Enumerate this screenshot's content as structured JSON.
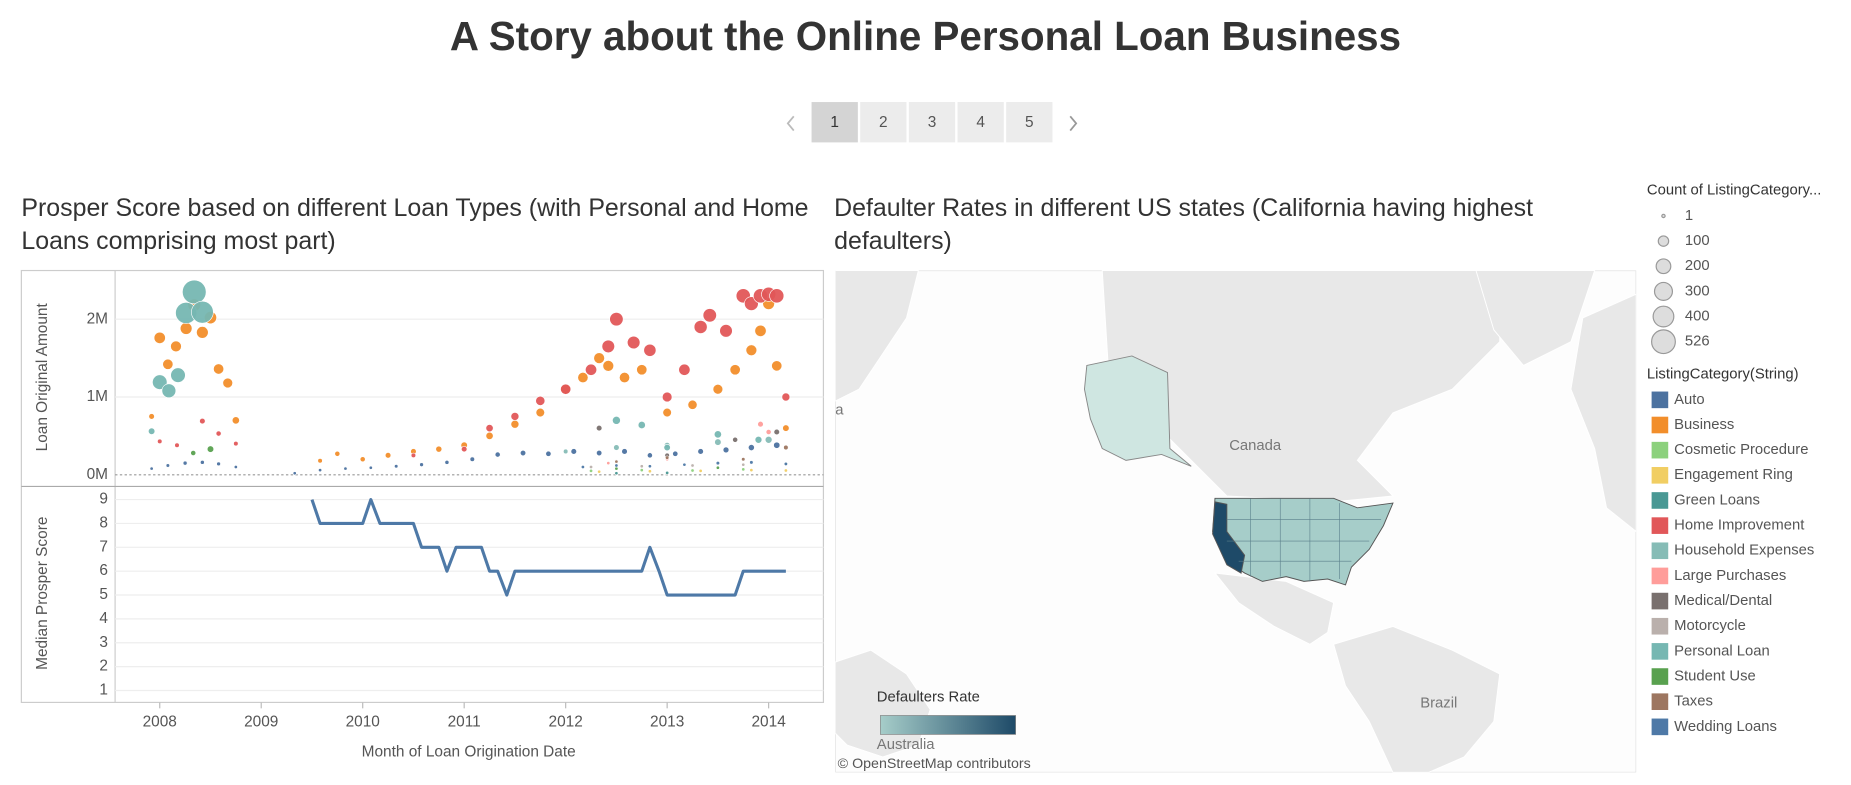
{
  "title": "A Story about the Online Personal Loan Business",
  "story_pages": [
    "1",
    "2",
    "3",
    "4",
    "5"
  ],
  "chart_data": [
    {
      "type": "bubble",
      "title": "Prosper Score based on different Loan Types (with Personal and Home Loans comprising most part)",
      "y_label": "Loan Original Amount",
      "xlim": [
        2007.56,
        2014.54
      ],
      "ylim": [
        -150000,
        2610000
      ],
      "yticks": [
        {
          "value": 0,
          "label": "0M"
        },
        {
          "value": 1000000,
          "label": "1M"
        },
        {
          "value": 2000000,
          "label": "2M"
        }
      ],
      "size_legend_title": "Count of ListingCategory...",
      "size_legend": [
        1,
        100,
        200,
        300,
        400,
        526
      ],
      "color_legend_title": "ListingCategory(String)",
      "series": [
        {
          "name": "Auto",
          "color": "#4c72a0",
          "x": [
            2007.92,
            2008.08,
            2008.25,
            2008.42,
            2008.58,
            2008.75,
            2009.33,
            2009.58,
            2009.83,
            2010.08,
            2010.33,
            2010.58,
            2010.83,
            2011.08,
            2011.33,
            2011.58,
            2011.83,
            2012.08,
            2012.33,
            2012.58,
            2012.83,
            2013.08,
            2013.33,
            2013.58,
            2013.83,
            2014.08
          ],
          "values": [
            80000,
            120000,
            150000,
            160000,
            140000,
            100000,
            20000,
            60000,
            80000,
            90000,
            110000,
            130000,
            160000,
            200000,
            260000,
            280000,
            270000,
            300000,
            280000,
            300000,
            250000,
            270000,
            300000,
            320000,
            350000,
            380000
          ],
          "sizes": [
            10,
            12,
            15,
            15,
            14,
            10,
            2,
            8,
            10,
            10,
            12,
            14,
            16,
            20,
            25,
            28,
            27,
            30,
            28,
            30,
            25,
            27,
            30,
            32,
            35,
            38
          ]
        },
        {
          "name": "Business",
          "color": "#f28e2b",
          "x": [
            2007.92,
            2008.0,
            2008.08,
            2008.16,
            2008.26,
            2008.34,
            2008.42,
            2008.5,
            2008.58,
            2008.67,
            2008.75,
            2009.58,
            2009.75,
            2010.0,
            2010.25,
            2010.5,
            2010.75,
            2011.0,
            2011.25,
            2011.5,
            2011.75,
            2012.0,
            2012.17,
            2012.33,
            2012.42,
            2012.58,
            2012.75,
            2013.0,
            2013.25,
            2013.5,
            2013.67,
            2013.83,
            2013.92,
            2014.0,
            2014.08,
            2014.17
          ],
          "values": [
            750000,
            1760000,
            1420000,
            1650000,
            1880000,
            2180000,
            1830000,
            2020000,
            1360000,
            1180000,
            700000,
            180000,
            270000,
            200000,
            250000,
            300000,
            330000,
            380000,
            500000,
            650000,
            800000,
            1100000,
            1250000,
            1500000,
            1400000,
            1250000,
            1350000,
            800000,
            900000,
            1100000,
            1350000,
            1600000,
            1850000,
            2200000,
            1400000,
            600000
          ],
          "sizes": [
            30,
            120,
            100,
            110,
            130,
            150,
            130,
            140,
            100,
            90,
            50,
            20,
            25,
            25,
            30,
            30,
            35,
            40,
            50,
            60,
            70,
            90,
            100,
            110,
            110,
            100,
            100,
            70,
            80,
            90,
            100,
            110,
            120,
            130,
            100,
            40
          ]
        },
        {
          "name": "Cosmetic Procedure",
          "color": "#8cd17d",
          "x": [
            2012.25,
            2012.75,
            2013.25,
            2013.75
          ],
          "values": [
            50000,
            60000,
            55000,
            70000
          ],
          "sizes": [
            3,
            4,
            4,
            5
          ]
        },
        {
          "name": "Engagement Ring",
          "color": "#f1ce63",
          "x": [
            2012.33,
            2012.83,
            2013.33,
            2013.83,
            2014.17
          ],
          "values": [
            40000,
            45000,
            50000,
            60000,
            55000
          ],
          "sizes": [
            4,
            4,
            5,
            6,
            5
          ]
        },
        {
          "name": "Green Loans",
          "color": "#499894",
          "x": [
            2012.5,
            2013.0
          ],
          "values": [
            20000,
            25000
          ],
          "sizes": [
            2,
            2
          ]
        },
        {
          "name": "Home Improvement",
          "color": "#e15759",
          "x": [
            2008.0,
            2008.17,
            2008.42,
            2008.58,
            2008.75,
            2010.5,
            2011.0,
            2011.25,
            2011.5,
            2011.75,
            2012.0,
            2012.25,
            2012.42,
            2012.5,
            2012.67,
            2012.83,
            2013.0,
            2013.17,
            2013.33,
            2013.42,
            2013.58,
            2013.75,
            2013.83,
            2013.92,
            2014.0,
            2014.08,
            2014.17
          ],
          "values": [
            430000,
            380000,
            690000,
            530000,
            400000,
            250000,
            330000,
            600000,
            750000,
            950000,
            1100000,
            1350000,
            1650000,
            2000000,
            1700000,
            1600000,
            1000000,
            1350000,
            1900000,
            2050000,
            1850000,
            2300000,
            2200000,
            2300000,
            2320000,
            2300000,
            1000000
          ],
          "sizes": [
            20,
            20,
            30,
            25,
            20,
            20,
            30,
            50,
            60,
            80,
            100,
            120,
            150,
            170,
            150,
            140,
            90,
            120,
            160,
            170,
            150,
            190,
            180,
            190,
            190,
            190,
            60
          ]
        },
        {
          "name": "Household Expenses",
          "color": "#86bcb6",
          "x": [
            2012.0,
            2012.5,
            2013.0,
            2013.5,
            2014.0
          ],
          "values": [
            300000,
            350000,
            380000,
            420000,
            450000
          ],
          "sizes": [
            20,
            30,
            30,
            40,
            45
          ]
        },
        {
          "name": "Large Purchases",
          "color": "#ff9d9a",
          "x": [
            2012.42,
            2013.0,
            2013.92,
            2014.0
          ],
          "values": [
            150000,
            200000,
            650000,
            550000
          ],
          "sizes": [
            8,
            10,
            30,
            25
          ]
        },
        {
          "name": "Medical/Dental",
          "color": "#79706e",
          "x": [
            2012.33,
            2013.0,
            2013.67,
            2014.08
          ],
          "values": [
            600000,
            250000,
            450000,
            550000
          ],
          "sizes": [
            30,
            20,
            25,
            30
          ]
        },
        {
          "name": "Motorcycle",
          "color": "#bab0ac",
          "x": [
            2012.25,
            2012.75,
            2013.25,
            2013.75,
            2014.17
          ],
          "values": [
            100000,
            110000,
            120000,
            130000,
            140000
          ],
          "sizes": [
            6,
            6,
            7,
            8,
            7
          ]
        },
        {
          "name": "Personal Loan",
          "color": "#76b7b2",
          "x": [
            2007.92,
            2008.0,
            2008.09,
            2008.18,
            2008.26,
            2008.34,
            2008.42,
            2012.5,
            2012.75,
            2013.0,
            2013.5,
            2013.9
          ],
          "values": [
            560000,
            1190000,
            1080000,
            1280000,
            2080000,
            2350000,
            2090000,
            700000,
            640000,
            350000,
            520000,
            450000
          ],
          "sizes": [
            40,
            200,
            180,
            200,
            420,
            526,
            450,
            60,
            50,
            40,
            50,
            45
          ]
        },
        {
          "name": "Student Use",
          "color": "#59a14f",
          "x": [
            2008.33,
            2008.5,
            2012.5,
            2013.5
          ],
          "values": [
            280000,
            330000,
            80000,
            90000
          ],
          "sizes": [
            25,
            40,
            5,
            6
          ]
        },
        {
          "name": "Taxes",
          "color": "#9d7660",
          "x": [
            2012.5,
            2013.0,
            2013.75,
            2014.17
          ],
          "values": [
            170000,
            220000,
            200000,
            350000
          ],
          "sizes": [
            10,
            12,
            12,
            20
          ]
        },
        {
          "name": "Wedding Loans",
          "color": "#4e79a7",
          "x": [
            2012.17,
            2012.5,
            2012.83,
            2013.17,
            2013.5,
            2013.83,
            2014.17
          ],
          "values": [
            100000,
            120000,
            110000,
            130000,
            150000,
            160000,
            140000
          ],
          "sizes": [
            8,
            10,
            9,
            10,
            12,
            12,
            11
          ]
        }
      ]
    },
    {
      "type": "line",
      "y_label": "Median Prosper Score",
      "x_label": "Month of Loan Origination Date",
      "xlim": [
        2007.56,
        2014.54
      ],
      "xticks": [
        2008,
        2009,
        2010,
        2011,
        2012,
        2013,
        2014
      ],
      "ylim": [
        0.5,
        9.5
      ],
      "yticks": [
        1,
        2,
        3,
        4,
        5,
        6,
        7,
        8,
        9
      ],
      "grid": true,
      "color": "#4e79a7",
      "x": [
        2009.5,
        2009.58,
        2009.67,
        2009.75,
        2009.83,
        2009.92,
        2010.0,
        2010.08,
        2010.17,
        2010.25,
        2010.33,
        2010.42,
        2010.5,
        2010.58,
        2010.67,
        2010.75,
        2010.83,
        2010.92,
        2011.0,
        2011.08,
        2011.17,
        2011.25,
        2011.33,
        2011.42,
        2011.5,
        2011.58,
        2011.67,
        2011.75,
        2011.83,
        2011.92,
        2012.0,
        2012.08,
        2012.17,
        2012.25,
        2012.33,
        2012.42,
        2012.5,
        2012.58,
        2012.67,
        2012.75,
        2012.83,
        2012.92,
        2013.0,
        2013.08,
        2013.17,
        2013.25,
        2013.33,
        2013.42,
        2013.5,
        2013.58,
        2013.67,
        2013.75,
        2013.83,
        2013.92,
        2014.0,
        2014.08,
        2014.17
      ],
      "values": [
        9,
        8,
        8,
        8,
        8,
        8,
        8,
        9,
        8,
        8,
        8,
        8,
        8,
        7,
        7,
        7,
        6,
        7,
        7,
        7,
        7,
        6,
        6,
        5,
        6,
        6,
        6,
        6,
        6,
        6,
        6,
        6,
        6,
        6,
        6,
        6,
        6,
        6,
        6,
        6,
        7,
        6,
        5,
        5,
        5,
        5,
        5,
        5,
        5,
        5,
        5,
        6,
        6,
        6,
        6,
        6,
        6
      ]
    },
    {
      "type": "map",
      "title": "Defaulter Rates in different US states (California having highest defaulters)",
      "labels": [
        "a",
        "Canada",
        "Brazil",
        "Australia"
      ],
      "color_legend_title": "Defaulters Rate",
      "colors": [
        "#a6cdc9",
        "#1e4a68"
      ],
      "attribution": "© OpenStreetMap contributors"
    }
  ]
}
